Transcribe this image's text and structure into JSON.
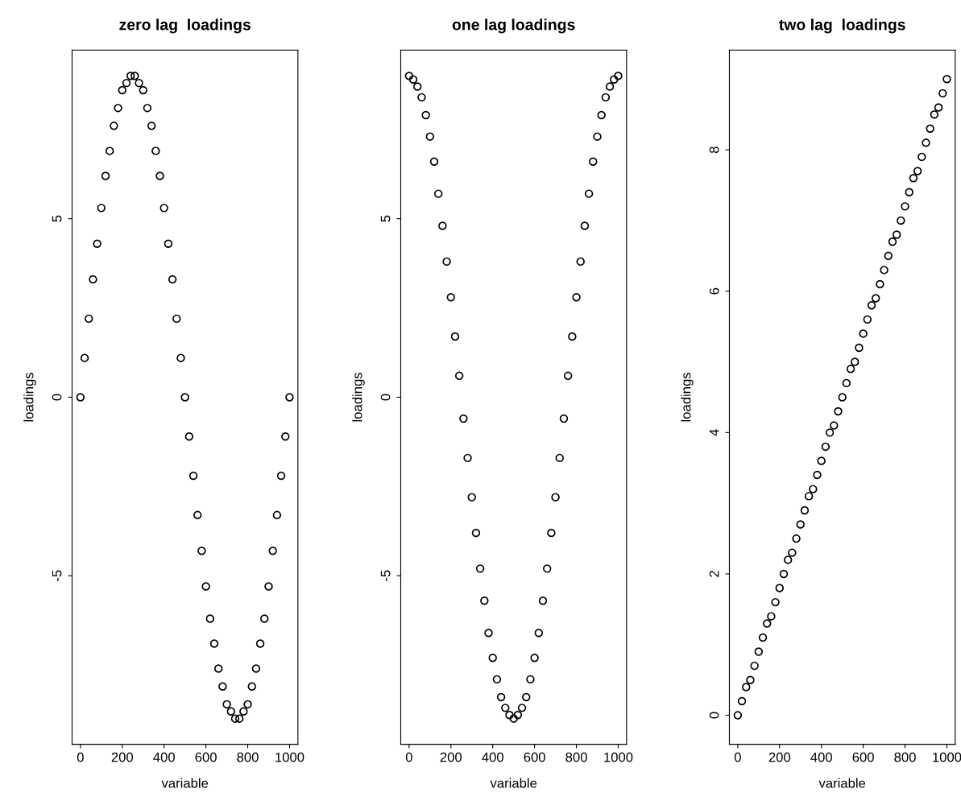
{
  "chart_data": [
    {
      "type": "scatter",
      "title": "zero lag  loadings",
      "xlabel": "variable",
      "ylabel": "loadings",
      "marker": "circle",
      "grid": false,
      "xlim": [
        -40,
        1040
      ],
      "xticks": [
        0,
        200,
        400,
        600,
        800,
        1000
      ],
      "ylim": [
        -9.72,
        9.72
      ],
      "yticks": [
        -5,
        0,
        5
      ],
      "x": [
        0,
        20,
        40,
        60,
        80,
        100,
        120,
        140,
        160,
        180,
        200,
        220,
        240,
        260,
        280,
        300,
        320,
        340,
        360,
        380,
        400,
        420,
        440,
        460,
        480,
        500,
        520,
        540,
        560,
        580,
        600,
        620,
        640,
        660,
        680,
        700,
        720,
        740,
        760,
        780,
        800,
        820,
        840,
        860,
        880,
        900,
        920,
        940,
        960,
        980,
        1000
      ],
      "series": [
        {
          "color": "#000000",
          "values": [
            0,
            1.1,
            2.2,
            3.3,
            4.3,
            5.3,
            6.2,
            6.9,
            7.6,
            8.1,
            8.6,
            8.8,
            9.0,
            9.0,
            8.8,
            8.6,
            8.1,
            7.6,
            6.9,
            6.2,
            5.3,
            4.3,
            3.3,
            2.2,
            1.1,
            0,
            -1.1,
            -2.2,
            -3.3,
            -4.3,
            -5.3,
            -6.2,
            -6.9,
            -7.6,
            -8.1,
            -8.6,
            -8.8,
            -9.0,
            -9.0,
            -8.8,
            -8.6,
            -8.1,
            -7.6,
            -6.9,
            -6.2,
            -5.3,
            -4.3,
            -3.3,
            -2.2,
            -1.1,
            0
          ]
        }
      ]
    },
    {
      "type": "scatter",
      "title": "one lag loadings",
      "xlabel": "variable",
      "ylabel": "loadings",
      "marker": "circle",
      "grid": false,
      "xlim": [
        -40,
        1040
      ],
      "xticks": [
        0,
        200,
        400,
        600,
        800,
        1000
      ],
      "ylim": [
        -9.72,
        9.72
      ],
      "yticks": [
        -5,
        0,
        5
      ],
      "x": [
        0,
        20,
        40,
        60,
        80,
        100,
        120,
        140,
        160,
        180,
        200,
        220,
        240,
        260,
        280,
        300,
        320,
        340,
        360,
        380,
        400,
        420,
        440,
        460,
        480,
        500,
        520,
        540,
        560,
        580,
        600,
        620,
        640,
        660,
        680,
        700,
        720,
        740,
        760,
        780,
        800,
        820,
        840,
        860,
        880,
        900,
        920,
        940,
        960,
        980,
        1000
      ],
      "series": [
        {
          "color": "#000000",
          "values": [
            9.0,
            8.9,
            8.7,
            8.4,
            7.9,
            7.3,
            6.6,
            5.7,
            4.8,
            3.8,
            2.8,
            1.7,
            0.6,
            -0.6,
            -1.7,
            -2.8,
            -3.8,
            -4.8,
            -5.7,
            -6.6,
            -7.3,
            -7.9,
            -8.4,
            -8.7,
            -8.9,
            -9.0,
            -8.9,
            -8.7,
            -8.4,
            -7.9,
            -7.3,
            -6.6,
            -5.7,
            -4.8,
            -3.8,
            -2.8,
            -1.7,
            -0.6,
            0.6,
            1.7,
            2.8,
            3.8,
            4.8,
            5.7,
            6.6,
            7.3,
            7.9,
            8.4,
            8.7,
            8.9,
            9.0
          ]
        }
      ]
    },
    {
      "type": "scatter",
      "title": "two lag  loadings",
      "xlabel": "variable",
      "ylabel": "loadings",
      "marker": "circle",
      "grid": false,
      "xlim": [
        -40,
        1040
      ],
      "xticks": [
        0,
        200,
        400,
        600,
        800,
        1000
      ],
      "ylim": [
        -0.41,
        9.41
      ],
      "yticks": [
        0,
        2,
        4,
        6,
        8
      ],
      "x": [
        0,
        20,
        40,
        60,
        80,
        100,
        120,
        140,
        160,
        180,
        200,
        220,
        240,
        260,
        280,
        300,
        320,
        340,
        360,
        380,
        400,
        420,
        440,
        460,
        480,
        500,
        520,
        540,
        560,
        580,
        600,
        620,
        640,
        660,
        680,
        700,
        720,
        740,
        760,
        780,
        800,
        820,
        840,
        860,
        880,
        900,
        920,
        940,
        960,
        980,
        1000
      ],
      "series": [
        {
          "color": "#000000",
          "values": [
            0,
            0.2,
            0.4,
            0.5,
            0.7,
            0.9,
            1.1,
            1.3,
            1.4,
            1.6,
            1.8,
            2.0,
            2.2,
            2.3,
            2.5,
            2.7,
            2.9,
            3.1,
            3.2,
            3.4,
            3.6,
            3.8,
            4.0,
            4.1,
            4.3,
            4.5,
            4.7,
            4.9,
            5.0,
            5.2,
            5.4,
            5.6,
            5.8,
            5.9,
            6.1,
            6.3,
            6.5,
            6.7,
            6.8,
            7.0,
            7.2,
            7.4,
            7.6,
            7.7,
            7.9,
            8.1,
            8.3,
            8.5,
            8.6,
            8.8,
            9.0
          ]
        }
      ]
    }
  ]
}
